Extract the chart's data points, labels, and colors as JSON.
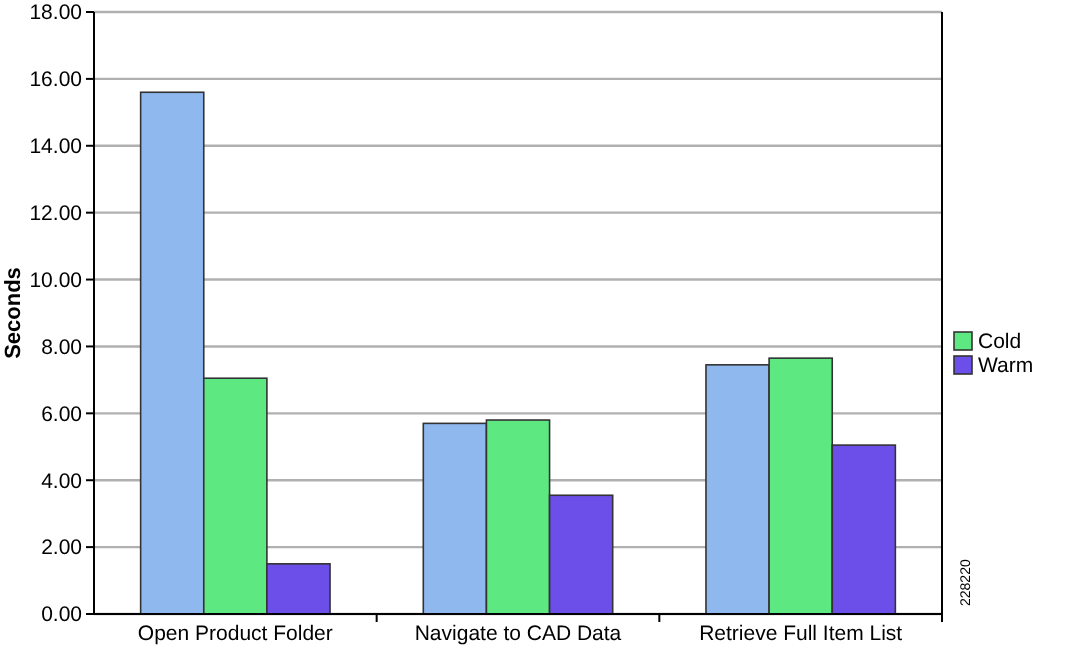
{
  "chart_data": {
    "type": "bar",
    "ylabel": "Seconds",
    "categories": [
      "Open Product Folder",
      "Navigate to CAD Data",
      "Retrieve Full Item List"
    ],
    "series": [
      {
        "color": "#8fb8ef",
        "values": [
          15.6,
          5.7,
          7.45
        ]
      },
      {
        "name": "Cold",
        "color": "#5de882",
        "values": [
          7.05,
          5.8,
          7.65
        ]
      },
      {
        "name": "Warm",
        "color": "#6b4fe8",
        "values": [
          1.5,
          3.55,
          5.05
        ]
      }
    ],
    "ylim": [
      0,
      18
    ],
    "yticks": [
      {
        "value": 0,
        "label": "0.00"
      },
      {
        "value": 2,
        "label": "2.00"
      },
      {
        "value": 4,
        "label": "4.00"
      },
      {
        "value": 6,
        "label": "6.00"
      },
      {
        "value": 8,
        "label": "8.00"
      },
      {
        "value": 10,
        "label": "10.00"
      },
      {
        "value": 12,
        "label": "12.00"
      },
      {
        "value": 14,
        "label": "14.00"
      },
      {
        "value": 16,
        "label": "16.00"
      },
      {
        "value": 18,
        "label": "18.00"
      }
    ],
    "grid": "y",
    "legend": "right",
    "annotations": [
      "228220"
    ]
  }
}
